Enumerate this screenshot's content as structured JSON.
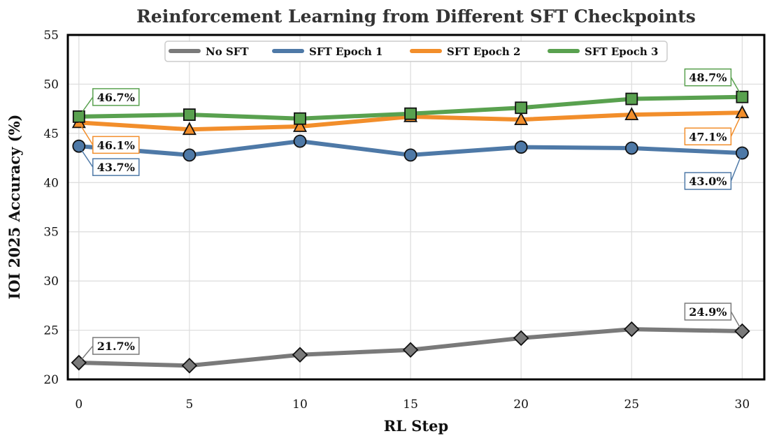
{
  "chart_data": {
    "type": "line",
    "title": "Reinforcement Learning from Different SFT Checkpoints",
    "xlabel": "RL Step",
    "ylabel": "IOI 2025 Accuracy (%)",
    "x": [
      0,
      5,
      10,
      15,
      20,
      25,
      30
    ],
    "xlim": [
      -0.5,
      31
    ],
    "ylim": [
      20,
      55
    ],
    "xticks": [
      "0",
      "5",
      "10",
      "15",
      "20",
      "25",
      "30"
    ],
    "yticks": [
      "20",
      "25",
      "30",
      "35",
      "40",
      "45",
      "50",
      "55"
    ],
    "grid": true,
    "legend_position": "top-center",
    "series": [
      {
        "name": "No SFT",
        "color": "#7a7a7a",
        "marker": "diamond",
        "values": [
          21.7,
          21.4,
          22.5,
          23.0,
          24.2,
          25.1,
          24.9
        ],
        "start_label": "21.7%",
        "end_label": "24.9%"
      },
      {
        "name": "SFT Epoch 1",
        "color": "#4e79a7",
        "marker": "circle",
        "values": [
          43.7,
          42.8,
          44.2,
          42.8,
          43.6,
          43.5,
          43.0
        ],
        "start_label": "43.7%",
        "end_label": "43.0%"
      },
      {
        "name": "SFT Epoch 2",
        "color": "#f28e2b",
        "marker": "triangle",
        "values": [
          46.1,
          45.4,
          45.7,
          46.7,
          46.4,
          46.9,
          47.1
        ],
        "start_label": "46.1%",
        "end_label": "47.1%"
      },
      {
        "name": "SFT Epoch 3",
        "color": "#59a14f",
        "marker": "square",
        "values": [
          46.7,
          46.9,
          46.5,
          47.0,
          47.6,
          48.5,
          48.7
        ],
        "start_label": "46.7%",
        "end_label": "48.7%"
      }
    ]
  }
}
